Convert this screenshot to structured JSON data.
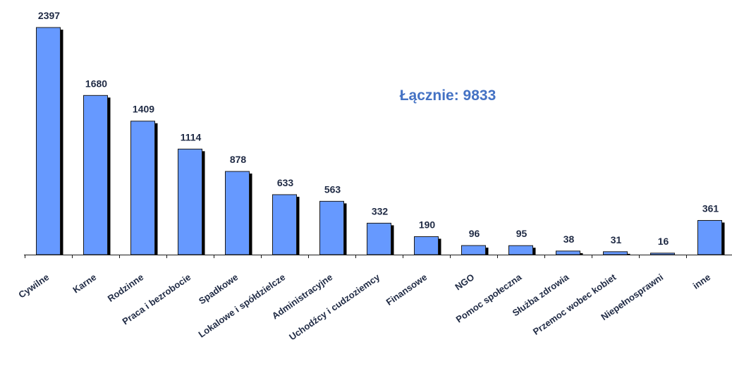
{
  "chart_data": {
    "type": "bar",
    "categories": [
      "Cywilne",
      "Karne",
      "Rodzinne",
      "Praca i bezrobocie",
      "Spadkowe",
      "Lokalowe i spółdzielcze",
      "Administracyjne",
      "Uchodźcy i cudzoziemcy",
      "Finansowe",
      "NGO",
      "Pomoc społeczna",
      "Służba zdrowia",
      "Przemoc wobec kobiet",
      "Niepełnosprawni",
      "inne"
    ],
    "values": [
      2397,
      1680,
      1409,
      1114,
      878,
      633,
      563,
      332,
      190,
      96,
      95,
      38,
      31,
      16,
      361
    ],
    "annotation": "Łącznie: 9833",
    "ylim": [
      0,
      2397
    ],
    "grid": false,
    "legend": "none",
    "colors": {
      "bar": "#6699ff",
      "bar_edge": "#1a1a1a",
      "shadow": "#000000",
      "axis": "#1a1a1a",
      "annotation": "#4472c4",
      "text": "#1f2a44"
    }
  }
}
